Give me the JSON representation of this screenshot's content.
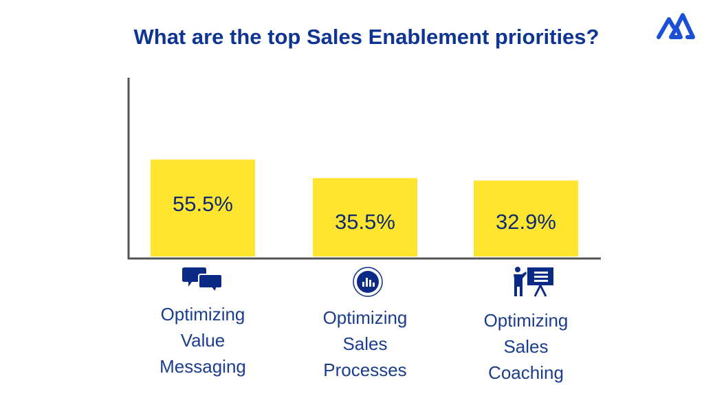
{
  "chart_data": {
    "type": "bar",
    "title": "What are the top Sales Enablement priorities?",
    "categories": [
      "Optimizing Value Messaging",
      "Optimizing Sales Processes",
      "Optimizing Sales Coaching"
    ],
    "category_lines": [
      [
        "Optimizing",
        "Value",
        "Messaging"
      ],
      [
        "Optimizing",
        "Sales",
        "Processes"
      ],
      [
        "Optimizing",
        "Sales",
        "Coaching"
      ]
    ],
    "values": [
      55.5,
      35.5,
      32.9
    ],
    "data_labels": [
      "55.5%",
      "35.5%",
      "32.9%"
    ],
    "category_icons": [
      "speech-bubbles-icon",
      "bar-chart-circle-icon",
      "presenter-board-icon"
    ],
    "grid": false,
    "colors": {
      "bar": "#FFE530",
      "text": "#1b3d8f",
      "title": "#0f3592",
      "icon": "#0a2a86",
      "logo": "#1a4fd6",
      "axis": "#555555"
    }
  }
}
